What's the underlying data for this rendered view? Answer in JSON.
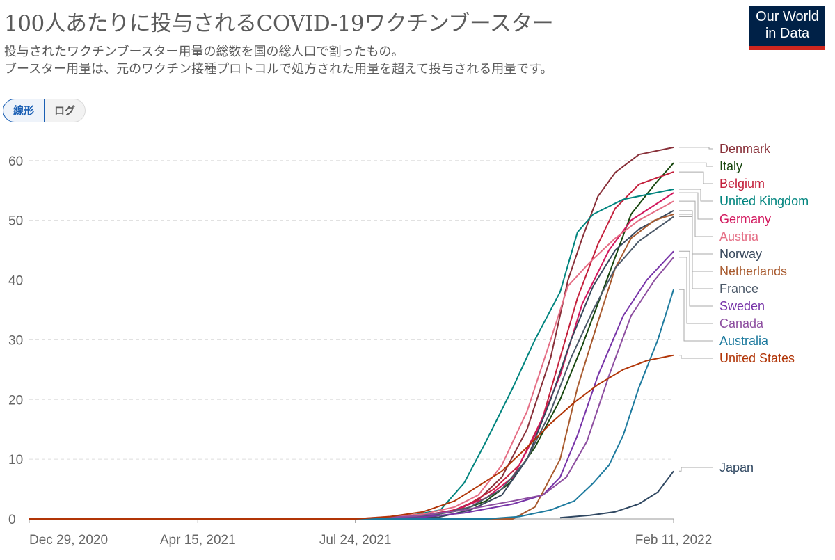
{
  "header": {
    "title": "100人あたりに投与されるCOVID-19ワクチンブースター",
    "subtitle_1": "投与されたワクチンブースター用量の総数を国の総人口で割ったもの。",
    "subtitle_2": "ブースター用量は、元のワクチン接種プロトコルで処方された用量を超えて投与される用量です。"
  },
  "logo": {
    "line1": "Our World",
    "line2": "in Data"
  },
  "scale_toggle": {
    "linear_label": "線形",
    "log_label": "ログ",
    "selected": "linear"
  },
  "chart_data": {
    "type": "line",
    "y_ticks": [
      0,
      10,
      20,
      30,
      40,
      50,
      60
    ],
    "ylim": [
      0,
      63
    ],
    "x_tick_labels": [
      "Dec 29, 2020",
      "Apr 15, 2021",
      "Jul 24, 2021",
      "Feb 11, 2022"
    ],
    "x_tick_dates": [
      "2020-12-29",
      "2021-04-15",
      "2021-07-24",
      "2022-02-11"
    ],
    "xlim": [
      "2020-12-29",
      "2022-02-11"
    ],
    "grid": "horizontal dashed",
    "series": [
      {
        "name": "Denmark",
        "color": "#883039",
        "points": [
          [
            "2020-12-29",
            0
          ],
          [
            "2021-07-24",
            0
          ],
          [
            "2021-09-05",
            0.6
          ],
          [
            "2021-09-25",
            1.5
          ],
          [
            "2021-10-10",
            3.2
          ],
          [
            "2021-10-25",
            7
          ],
          [
            "2021-11-10",
            15
          ],
          [
            "2021-11-25",
            27
          ],
          [
            "2021-12-06",
            40
          ],
          [
            "2021-12-15",
            47
          ],
          [
            "2021-12-25",
            54
          ],
          [
            "2022-01-05",
            58
          ],
          [
            "2022-01-20",
            61
          ],
          [
            "2022-02-11",
            62.2
          ]
        ]
      },
      {
        "name": "Italy",
        "color": "#18470f",
        "points": [
          [
            "2020-12-29",
            0
          ],
          [
            "2021-07-24",
            0
          ],
          [
            "2021-09-10",
            0.6
          ],
          [
            "2021-09-30",
            1.5
          ],
          [
            "2021-10-15",
            3
          ],
          [
            "2021-10-30",
            6
          ],
          [
            "2021-11-15",
            12
          ],
          [
            "2021-12-01",
            20
          ],
          [
            "2021-12-15",
            29
          ],
          [
            "2022-01-01",
            41
          ],
          [
            "2022-01-15",
            51
          ],
          [
            "2022-01-30",
            56
          ],
          [
            "2022-02-11",
            59.6
          ]
        ]
      },
      {
        "name": "Belgium",
        "color": "#c4203c",
        "points": [
          [
            "2020-12-29",
            0
          ],
          [
            "2021-07-24",
            0
          ],
          [
            "2021-09-15",
            0.8
          ],
          [
            "2021-10-01",
            2
          ],
          [
            "2021-10-20",
            5
          ],
          [
            "2021-11-05",
            9
          ],
          [
            "2021-11-20",
            17
          ],
          [
            "2021-12-01",
            27
          ],
          [
            "2021-12-12",
            37
          ],
          [
            "2021-12-25",
            46
          ],
          [
            "2022-01-05",
            52
          ],
          [
            "2022-01-20",
            56
          ],
          [
            "2022-02-11",
            58.1
          ]
        ]
      },
      {
        "name": "United Kingdom",
        "color": "#00847e",
        "points": [
          [
            "2020-12-29",
            0
          ],
          [
            "2021-07-24",
            0
          ],
          [
            "2021-08-20",
            0.2
          ],
          [
            "2021-09-16",
            1.5
          ],
          [
            "2021-10-01",
            6
          ],
          [
            "2021-10-15",
            13
          ],
          [
            "2021-11-01",
            22
          ],
          [
            "2021-11-15",
            30
          ],
          [
            "2021-12-01",
            38
          ],
          [
            "2021-12-12",
            48
          ],
          [
            "2021-12-22",
            51
          ],
          [
            "2022-01-10",
            53.5
          ],
          [
            "2022-02-11",
            55.2
          ]
        ]
      },
      {
        "name": "Germany",
        "color": "#d2175d",
        "points": [
          [
            "2020-12-29",
            0
          ],
          [
            "2021-07-24",
            0
          ],
          [
            "2021-09-05",
            0.5
          ],
          [
            "2021-09-25",
            1.5
          ],
          [
            "2021-10-15",
            3.5
          ],
          [
            "2021-11-01",
            7
          ],
          [
            "2021-11-15",
            14
          ],
          [
            "2021-12-01",
            24
          ],
          [
            "2021-12-15",
            36
          ],
          [
            "2022-01-01",
            45
          ],
          [
            "2022-01-15",
            50
          ],
          [
            "2022-02-11",
            54.6
          ]
        ]
      },
      {
        "name": "Austria",
        "color": "#e56e85",
        "points": [
          [
            "2020-12-29",
            0
          ],
          [
            "2021-07-24",
            0
          ],
          [
            "2021-09-05",
            0.8
          ],
          [
            "2021-09-25",
            2
          ],
          [
            "2021-10-10",
            4
          ],
          [
            "2021-10-25",
            9
          ],
          [
            "2021-11-10",
            18
          ],
          [
            "2021-11-25",
            30
          ],
          [
            "2021-12-06",
            39
          ],
          [
            "2021-12-20",
            43
          ],
          [
            "2022-01-05",
            47
          ],
          [
            "2022-01-20",
            50
          ],
          [
            "2022-02-11",
            53.2
          ]
        ]
      },
      {
        "name": "Norway",
        "color": "#38485c",
        "points": [
          [
            "2020-12-29",
            0
          ],
          [
            "2021-07-24",
            0
          ],
          [
            "2021-09-15",
            0.3
          ],
          [
            "2021-10-05",
            1.5
          ],
          [
            "2021-10-25",
            4
          ],
          [
            "2021-11-10",
            10
          ],
          [
            "2021-11-25",
            20
          ],
          [
            "2021-12-08",
            30
          ],
          [
            "2021-12-22",
            39
          ],
          [
            "2022-01-05",
            45
          ],
          [
            "2022-01-20",
            48.5
          ],
          [
            "2022-02-11",
            51.6
          ]
        ]
      },
      {
        "name": "Netherlands",
        "color": "#a85a2e",
        "points": [
          [
            "2020-12-29",
            0
          ],
          [
            "2021-07-24",
            0
          ],
          [
            "2021-11-01",
            0
          ],
          [
            "2021-11-15",
            2
          ],
          [
            "2021-12-01",
            10
          ],
          [
            "2021-12-12",
            22
          ],
          [
            "2021-12-25",
            33
          ],
          [
            "2022-01-05",
            42
          ],
          [
            "2022-01-15",
            47
          ],
          [
            "2022-01-30",
            50
          ],
          [
            "2022-02-11",
            51
          ]
        ]
      },
      {
        "name": "France",
        "color": "#4c5969",
        "points": [
          [
            "2020-12-29",
            0
          ],
          [
            "2021-07-24",
            0
          ],
          [
            "2021-08-25",
            0.2
          ],
          [
            "2021-09-15",
            0.8
          ],
          [
            "2021-10-05",
            2
          ],
          [
            "2021-10-25",
            5
          ],
          [
            "2021-11-10",
            10
          ],
          [
            "2021-11-25",
            18
          ],
          [
            "2021-12-08",
            27
          ],
          [
            "2021-12-22",
            35
          ],
          [
            "2022-01-05",
            42
          ],
          [
            "2022-01-20",
            46.5
          ],
          [
            "2022-02-11",
            50.6
          ]
        ]
      },
      {
        "name": "Sweden",
        "color": "#7734a8",
        "points": [
          [
            "2020-12-29",
            0
          ],
          [
            "2021-07-24",
            0
          ],
          [
            "2021-09-01",
            0.2
          ],
          [
            "2021-10-01",
            1
          ],
          [
            "2021-11-01",
            2.5
          ],
          [
            "2021-11-20",
            4
          ],
          [
            "2021-12-01",
            7
          ],
          [
            "2021-12-12",
            14
          ],
          [
            "2021-12-25",
            24
          ],
          [
            "2022-01-10",
            34
          ],
          [
            "2022-01-25",
            40
          ],
          [
            "2022-02-11",
            44.8
          ]
        ]
      },
      {
        "name": "Canada",
        "color": "#8d4ea0",
        "points": [
          [
            "2020-12-29",
            0
          ],
          [
            "2021-07-24",
            0
          ],
          [
            "2021-09-01",
            0.5
          ],
          [
            "2021-10-01",
            1.5
          ],
          [
            "2021-11-01",
            3
          ],
          [
            "2021-11-20",
            4
          ],
          [
            "2021-12-05",
            7
          ],
          [
            "2021-12-18",
            13
          ],
          [
            "2022-01-01",
            24
          ],
          [
            "2022-01-15",
            34
          ],
          [
            "2022-01-30",
            40
          ],
          [
            "2022-02-11",
            43.8
          ]
        ]
      },
      {
        "name": "Australia",
        "color": "#1d7a9e",
        "points": [
          [
            "2020-12-29",
            0
          ],
          [
            "2021-07-24",
            0
          ],
          [
            "2021-10-15",
            0
          ],
          [
            "2021-11-05",
            0.4
          ],
          [
            "2021-11-25",
            1.5
          ],
          [
            "2021-12-10",
            3
          ],
          [
            "2021-12-22",
            6
          ],
          [
            "2022-01-01",
            9
          ],
          [
            "2022-01-10",
            14
          ],
          [
            "2022-01-20",
            22
          ],
          [
            "2022-02-01",
            30
          ],
          [
            "2022-02-11",
            38.4
          ]
        ]
      },
      {
        "name": "United States",
        "color": "#b13507",
        "points": [
          [
            "2020-12-29",
            0
          ],
          [
            "2021-07-24",
            0
          ],
          [
            "2021-08-15",
            0.4
          ],
          [
            "2021-09-05",
            1.2
          ],
          [
            "2021-09-25",
            3
          ],
          [
            "2021-10-10",
            5.5
          ],
          [
            "2021-10-25",
            8
          ],
          [
            "2021-11-10",
            12
          ],
          [
            "2021-11-25",
            16
          ],
          [
            "2021-12-10",
            19.5
          ],
          [
            "2021-12-25",
            22.5
          ],
          [
            "2022-01-10",
            25
          ],
          [
            "2022-01-25",
            26.5
          ],
          [
            "2022-02-11",
            27.4
          ]
        ]
      },
      {
        "name": "Japan",
        "color": "#2f4761",
        "points": [
          [
            "2021-12-01",
            0.2
          ],
          [
            "2021-12-20",
            0.6
          ],
          [
            "2022-01-05",
            1.2
          ],
          [
            "2022-01-20",
            2.5
          ],
          [
            "2022-02-01",
            4.5
          ],
          [
            "2022-02-11",
            8
          ]
        ]
      }
    ]
  }
}
